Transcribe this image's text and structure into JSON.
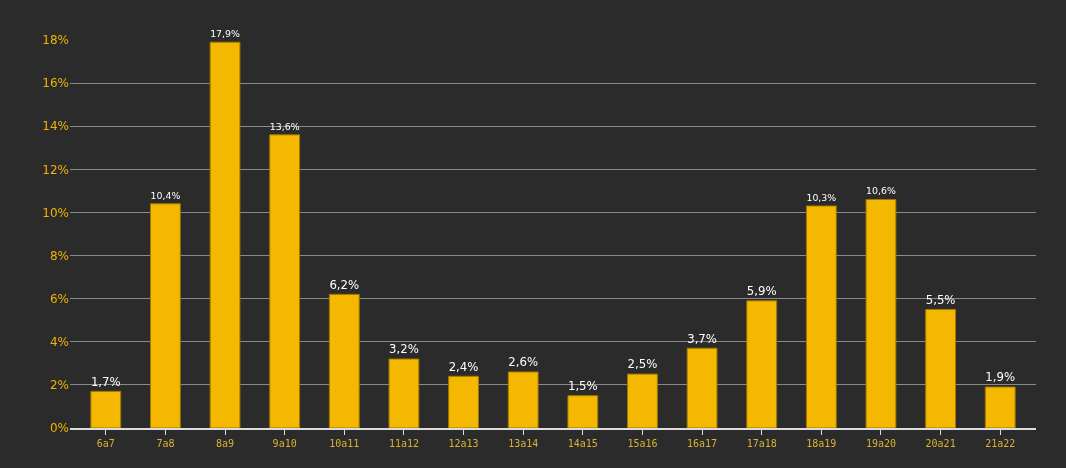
{
  "chart_data": {
    "type": "bar",
    "categories": [
      "6a7",
      "7a8",
      "8a9",
      "9a10",
      "10a11",
      "11a12",
      "12a13",
      "13a14",
      "14a15",
      "15a16",
      "16a17",
      "17a18",
      "18a19",
      "19a20",
      "20a21",
      "21a22"
    ],
    "values": [
      1.7,
      10.4,
      17.9,
      13.6,
      6.2,
      3.2,
      2.4,
      2.6,
      1.5,
      2.5,
      3.7,
      5.9,
      10.3,
      10.6,
      5.5,
      1.9
    ],
    "value_labels": [
      "1,7%",
      "10,4%",
      "17,9%",
      "13,6%",
      "6,2%",
      "3,2%",
      "2,4%",
      "2,6%",
      "1,5%",
      "2,5%",
      "3,7%",
      "5,9%",
      "10,3%",
      "10,6%",
      "5,5%",
      "1,9%"
    ],
    "color": "#f5b800",
    "ylim": [
      0,
      18
    ],
    "yticks": [
      {
        "value": 0,
        "label": "0%"
      },
      {
        "value": 2,
        "label": "2%"
      },
      {
        "value": 4,
        "label": "4%"
      },
      {
        "value": 6,
        "label": "6%"
      },
      {
        "value": 8,
        "label": "8%"
      },
      {
        "value": 10,
        "label": "10%"
      },
      {
        "value": 12,
        "label": "12%"
      },
      {
        "value": 14,
        "label": "14%"
      },
      {
        "value": 16,
        "label": "16%"
      },
      {
        "value": 18,
        "label": "18%"
      }
    ],
    "grid": "y"
  }
}
